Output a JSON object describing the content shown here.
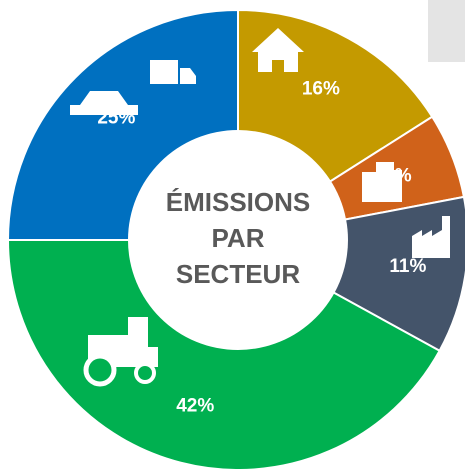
{
  "chart_data": {
    "type": "donut",
    "title_lines": [
      "ÉMISSIONS",
      "PAR",
      "SECTEUR"
    ],
    "values": [
      16,
      6,
      11,
      42,
      25
    ],
    "value_labels": [
      "16%",
      "6%",
      "11%",
      "42%",
      "25%"
    ],
    "colors": [
      "#c49a00",
      "#d0621a",
      "#44546a",
      "#00b050",
      "#0070c0"
    ]
  }
}
